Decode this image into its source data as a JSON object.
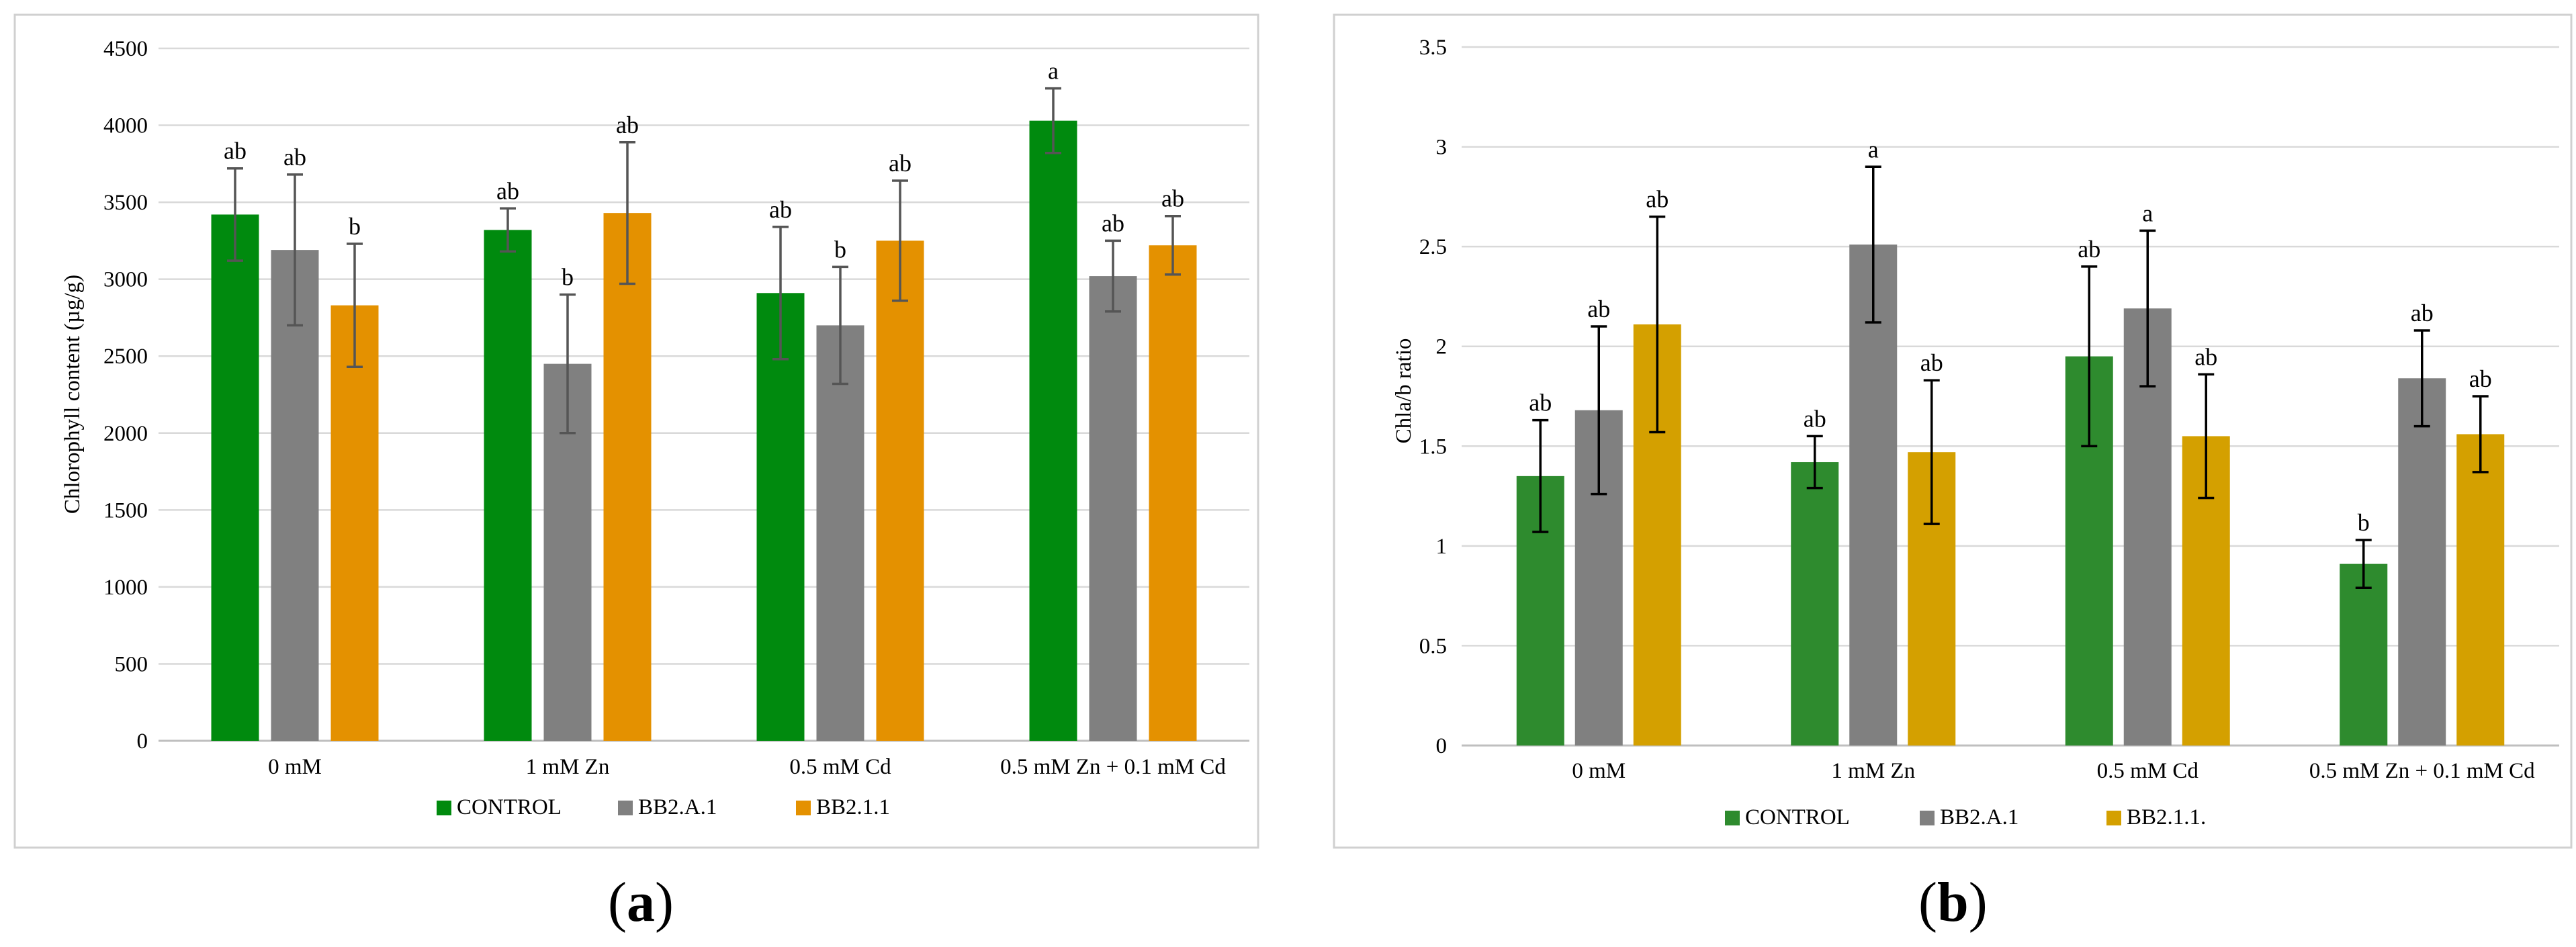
{
  "figure": {
    "panel_a_label": {
      "open": "(",
      "letter": "a",
      "close": ")"
    },
    "panel_b_label": {
      "open": "(",
      "letter": "b",
      "close": ")"
    }
  },
  "chart_data": [
    {
      "type": "bar",
      "panel": "a",
      "ylabel": "Chlorophyll content (µg/g)",
      "xlabel": "",
      "ylim": [
        0,
        4500
      ],
      "yticks": [
        0,
        500,
        1000,
        1500,
        2000,
        2500,
        3000,
        3500,
        4000,
        4500
      ],
      "grid": true,
      "legend_position": "bottom",
      "categories": [
        "0 mM",
        "1 mM Zn",
        "0.5 mM Cd",
        "0.5 mM Zn + 0.1 mM Cd"
      ],
      "series": [
        {
          "name": "CONTROL",
          "color": "#008a0e",
          "values": [
            3420,
            3320,
            2910,
            4030
          ],
          "errors": [
            300,
            140,
            430,
            210
          ],
          "letters": [
            "ab",
            "ab",
            "ab",
            "a"
          ]
        },
        {
          "name": "BB2.A.1",
          "color": "#808080",
          "values": [
            3190,
            2450,
            2700,
            3020
          ],
          "errors": [
            490,
            450,
            380,
            230
          ],
          "letters": [
            "ab",
            "b",
            "b",
            "ab"
          ]
        },
        {
          "name": "BB2.1.1",
          "color": "#e49100",
          "values": [
            2830,
            3430,
            3250,
            3220
          ],
          "errors": [
            400,
            460,
            390,
            190
          ],
          "letters": [
            "b",
            "ab",
            "ab",
            "ab"
          ]
        }
      ]
    },
    {
      "type": "bar",
      "panel": "b",
      "ylabel": "Chla/b ratio",
      "xlabel": "",
      "ylim": [
        0,
        3.5
      ],
      "yticks": [
        0,
        0.5,
        1,
        1.5,
        2,
        2.5,
        3,
        3.5
      ],
      "grid": true,
      "legend_position": "bottom",
      "categories": [
        "0 mM",
        "1 mM Zn",
        "0.5 mM Cd",
        "0.5 mM Zn + 0.1 mM Cd"
      ],
      "series": [
        {
          "name": "CONTROL",
          "color": "#2e8b2e",
          "values": [
            1.35,
            1.42,
            1.95,
            0.91
          ],
          "errors": [
            0.28,
            0.13,
            0.45,
            0.12
          ],
          "letters": [
            "ab",
            "ab",
            "ab",
            "b"
          ]
        },
        {
          "name": "BB2.A.1",
          "color": "#808080",
          "values": [
            1.68,
            2.51,
            2.19,
            1.84
          ],
          "errors": [
            0.42,
            0.39,
            0.39,
            0.24
          ],
          "letters": [
            "ab",
            "a",
            "a",
            "ab"
          ]
        },
        {
          "name": "BB2.1.1.",
          "color": "#d4a000",
          "values": [
            2.11,
            1.47,
            1.55,
            1.56
          ],
          "errors": [
            0.54,
            0.36,
            0.31,
            0.19
          ],
          "letters": [
            "ab",
            "ab",
            "ab",
            "ab"
          ]
        }
      ]
    }
  ]
}
